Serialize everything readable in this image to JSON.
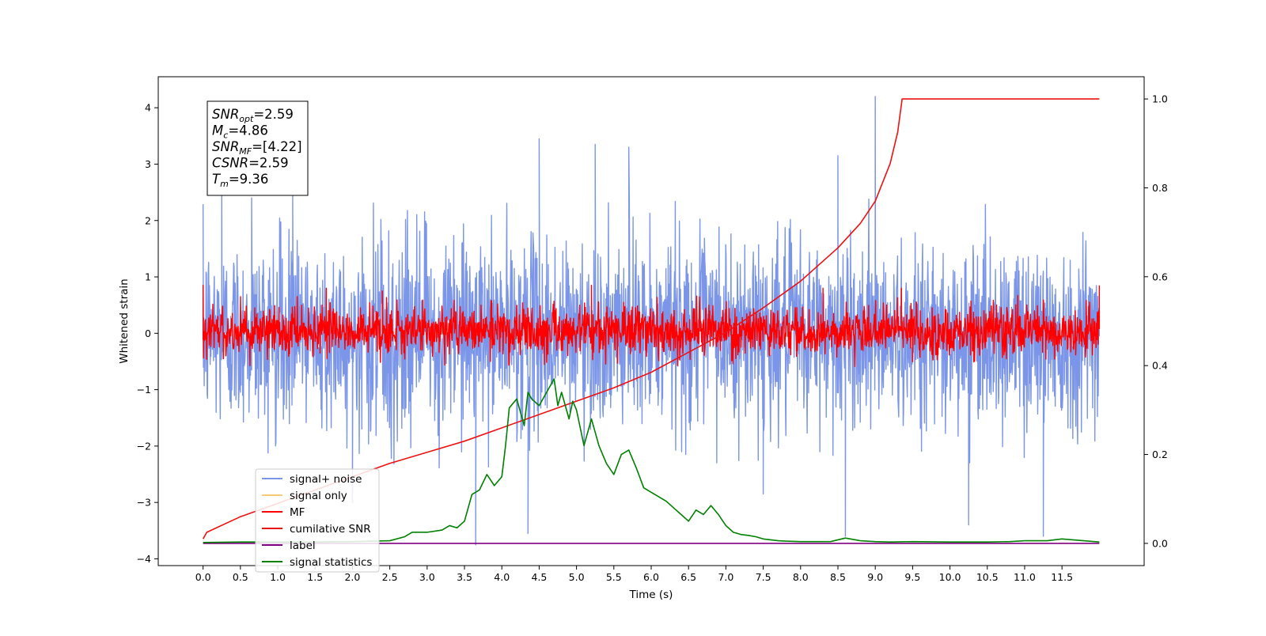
{
  "chart_data": {
    "type": "line",
    "title": "",
    "xlabel": "Time (s)",
    "ylabel": "Whitened strain",
    "xlim": [
      -0.6,
      12.6
    ],
    "ylim": [
      -4.12,
      4.55
    ],
    "ylim_right": [
      -0.05,
      1.05
    ],
    "x_ticks": [
      0.0,
      0.5,
      1.0,
      1.5,
      2.0,
      2.5,
      3.0,
      3.5,
      4.0,
      4.5,
      5.0,
      5.5,
      6.0,
      6.5,
      7.0,
      7.5,
      8.0,
      8.5,
      9.0,
      9.5,
      10.0,
      10.5,
      11.0,
      11.5
    ],
    "x_tick_labels": [
      "0.0",
      "0.5",
      "1.0",
      "1.5",
      "2.0",
      "2.5",
      "3.0",
      "3.5",
      "4.0",
      "4.5",
      "5.0",
      "5.5",
      "6.0",
      "6.5",
      "7.0",
      "7.5",
      "8.0",
      "8.5",
      "9.0",
      "9.5",
      "10.0",
      "10.5",
      "11.0",
      "11.5"
    ],
    "y_ticks": [
      -4,
      -3,
      -2,
      -1,
      0,
      1,
      2,
      3,
      4
    ],
    "y_tick_labels": [
      "−4",
      "−3",
      "−2",
      "−1",
      "0",
      "1",
      "2",
      "3",
      "4"
    ],
    "y_ticks_right": [
      0.0,
      0.2,
      0.4,
      0.6,
      0.8,
      1.0
    ],
    "y_tick_labels_right": [
      "0.0",
      "0.2",
      "0.4",
      "0.6",
      "0.8",
      "1.0"
    ],
    "grid": false,
    "legend_position": "lower-left",
    "annotation": {
      "lines": [
        {
          "base": "SNR",
          "sub": "opt",
          "value": "=2.59"
        },
        {
          "base": "M",
          "sub": "c",
          "value": "=4.86"
        },
        {
          "base": "SNR",
          "sub": "MF",
          "value": "=[4.22]"
        },
        {
          "base": "CSNR",
          "sub": "",
          "value": "=2.59"
        },
        {
          "base": "T",
          "sub": "m",
          "value": "=9.36"
        }
      ]
    },
    "series": [
      {
        "name": "signal+ noise",
        "color": "#7b96e8",
        "axis": "left",
        "style": "noise",
        "x_range": [
          0.0,
          12.0
        ],
        "typical_range": [
          -1.5,
          1.5
        ],
        "extrema": [
          [
            0.25,
            2.6
          ],
          [
            0.65,
            2.4
          ],
          [
            1.2,
            2.45
          ],
          [
            2.0,
            -3.0
          ],
          [
            3.65,
            -3.75
          ],
          [
            4.35,
            -3.55
          ],
          [
            4.5,
            3.45
          ],
          [
            5.25,
            3.35
          ],
          [
            5.7,
            3.3
          ],
          [
            7.5,
            -2.85
          ],
          [
            8.5,
            3.15
          ],
          [
            8.6,
            -3.6
          ],
          [
            9.0,
            4.2
          ],
          [
            10.25,
            -3.4
          ],
          [
            11.25,
            -3.6
          ]
        ]
      },
      {
        "name": "signal only",
        "color": "#f5c97a",
        "axis": "left",
        "style": "none"
      },
      {
        "name": "MF",
        "color": "#ff0000",
        "axis": "left",
        "style": "noise",
        "x_range": [
          0.0,
          12.0
        ],
        "typical_range": [
          -0.35,
          0.45
        ],
        "extrema": [
          [
            0.0,
            0.85
          ],
          [
            1.65,
            0.8
          ],
          [
            2.4,
            0.75
          ],
          [
            5.2,
            0.85
          ],
          [
            8.3,
            0.8
          ],
          [
            9.35,
            0.8
          ],
          [
            12.0,
            0.85
          ]
        ]
      },
      {
        "name": "cumilative SNR",
        "color": "#ee1111",
        "axis": "right",
        "style": "line",
        "x": [
          0.0,
          0.05,
          0.5,
          1.0,
          1.5,
          2.0,
          2.5,
          3.0,
          3.5,
          4.0,
          4.5,
          5.0,
          5.5,
          6.0,
          6.5,
          7.0,
          7.5,
          8.0,
          8.5,
          8.8,
          9.0,
          9.2,
          9.3,
          9.36,
          10.0,
          11.0,
          12.0
        ],
        "y": [
          0.01,
          0.025,
          0.06,
          0.09,
          0.12,
          0.15,
          0.18,
          0.205,
          0.23,
          0.26,
          0.29,
          0.32,
          0.35,
          0.385,
          0.43,
          0.475,
          0.53,
          0.59,
          0.665,
          0.72,
          0.77,
          0.855,
          0.925,
          1.0,
          1.0,
          1.0,
          1.0
        ]
      },
      {
        "name": "label",
        "color": "#800080",
        "axis": "right",
        "style": "line",
        "x": [
          0.0,
          12.0
        ],
        "y": [
          0.0,
          0.0
        ]
      },
      {
        "name": "signal statistics",
        "color": "#008000",
        "axis": "right",
        "style": "line",
        "x": [
          0.0,
          0.5,
          1.0,
          1.5,
          2.0,
          2.5,
          2.7,
          2.8,
          3.0,
          3.2,
          3.3,
          3.4,
          3.5,
          3.6,
          3.7,
          3.8,
          3.9,
          4.0,
          4.05,
          4.1,
          4.2,
          4.3,
          4.35,
          4.4,
          4.5,
          4.6,
          4.7,
          4.75,
          4.8,
          4.9,
          4.95,
          5.0,
          5.1,
          5.2,
          5.25,
          5.3,
          5.4,
          5.5,
          5.6,
          5.7,
          5.8,
          5.9,
          6.0,
          6.1,
          6.2,
          6.3,
          6.4,
          6.5,
          6.6,
          6.7,
          6.8,
          6.9,
          7.0,
          7.1,
          7.2,
          7.3,
          7.4,
          7.5,
          7.6,
          7.7,
          7.8,
          8.0,
          8.2,
          8.4,
          8.6,
          8.8,
          9.0,
          9.2,
          9.5,
          10.0,
          10.5,
          10.8,
          11.0,
          11.3,
          11.5,
          12.0
        ],
        "y": [
          0.002,
          0.003,
          0.003,
          0.003,
          0.004,
          0.006,
          0.015,
          0.025,
          0.025,
          0.03,
          0.04,
          0.035,
          0.05,
          0.11,
          0.12,
          0.155,
          0.13,
          0.15,
          0.22,
          0.305,
          0.325,
          0.265,
          0.34,
          0.325,
          0.31,
          0.34,
          0.37,
          0.31,
          0.34,
          0.28,
          0.32,
          0.3,
          0.22,
          0.28,
          0.25,
          0.22,
          0.18,
          0.155,
          0.2,
          0.21,
          0.17,
          0.125,
          0.115,
          0.105,
          0.095,
          0.08,
          0.065,
          0.05,
          0.075,
          0.065,
          0.085,
          0.065,
          0.04,
          0.025,
          0.02,
          0.018,
          0.015,
          0.01,
          0.008,
          0.006,
          0.005,
          0.004,
          0.004,
          0.004,
          0.012,
          0.006,
          0.004,
          0.003,
          0.004,
          0.003,
          0.003,
          0.004,
          0.006,
          0.006,
          0.01,
          0.003
        ]
      }
    ]
  }
}
